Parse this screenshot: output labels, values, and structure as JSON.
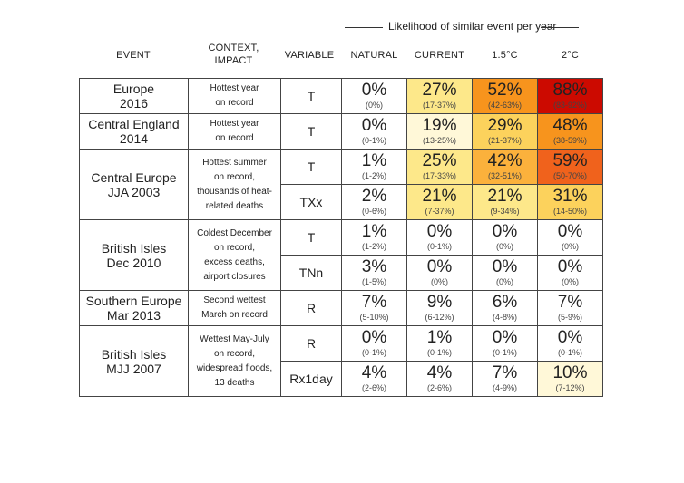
{
  "likelihood_label": "Likelihood of similar event per year",
  "headers": {
    "event": "EVENT",
    "context": "CONTEXT,\nIMPACT",
    "variable": "VARIABLE",
    "natural": "NATURAL",
    "current": "CURRENT",
    "c15": "1.5°C",
    "c2": "2°C"
  },
  "colors": {
    "white": "#ffffff",
    "pale_yellow": "#fff8d8",
    "light_yellow": "#fde88a",
    "yellow": "#fcd25c",
    "light_orange": "#fbb13c",
    "orange": "#f7941d",
    "dark_orange": "#f0621c",
    "red": "#cc0a00"
  },
  "events": [
    {
      "name": "Europe\n2016",
      "context": "Hottest year\non record",
      "rows": [
        {
          "variable": "T",
          "cells": [
            {
              "pct": "0%",
              "range": "(0%)",
              "color": "#ffffff"
            },
            {
              "pct": "27%",
              "range": "(17-37%)",
              "color": "#fde88a"
            },
            {
              "pct": "52%",
              "range": "(42-63%)",
              "color": "#f7941d"
            },
            {
              "pct": "88%",
              "range": "(83-92%)",
              "color": "#cc0a00"
            }
          ]
        }
      ]
    },
    {
      "name": "Central England\n2014",
      "context": "Hottest year\non record",
      "rows": [
        {
          "variable": "T",
          "cells": [
            {
              "pct": "0%",
              "range": "(0-1%)",
              "color": "#ffffff"
            },
            {
              "pct": "19%",
              "range": "(13-25%)",
              "color": "#fff8d8"
            },
            {
              "pct": "29%",
              "range": "(21-37%)",
              "color": "#fcd25c"
            },
            {
              "pct": "48%",
              "range": "(38-59%)",
              "color": "#f7941d"
            }
          ]
        }
      ]
    },
    {
      "name": "Central Europe\nJJA 2003",
      "context": "Hottest summer\non record,\nthousands of heat-\nrelated deaths",
      "rows": [
        {
          "variable": "T",
          "cells": [
            {
              "pct": "1%",
              "range": "(1-2%)",
              "color": "#ffffff"
            },
            {
              "pct": "25%",
              "range": "(17-33%)",
              "color": "#fde88a"
            },
            {
              "pct": "42%",
              "range": "(32-51%)",
              "color": "#fbb13c"
            },
            {
              "pct": "59%",
              "range": "(50-70%)",
              "color": "#f0621c"
            }
          ]
        },
        {
          "variable": "TXx",
          "cells": [
            {
              "pct": "2%",
              "range": "(0-6%)",
              "color": "#ffffff"
            },
            {
              "pct": "21%",
              "range": "(7-37%)",
              "color": "#fde88a"
            },
            {
              "pct": "21%",
              "range": "(9-34%)",
              "color": "#fde88a"
            },
            {
              "pct": "31%",
              "range": "(14-50%)",
              "color": "#fcd25c"
            }
          ]
        }
      ]
    },
    {
      "name": "British Isles\nDec 2010",
      "context": "Coldest December\non record,\nexcess deaths,\nairport closures",
      "rows": [
        {
          "variable": "T",
          "cells": [
            {
              "pct": "1%",
              "range": "(1-2%)",
              "color": "#ffffff"
            },
            {
              "pct": "0%",
              "range": "(0-1%)",
              "color": "#ffffff"
            },
            {
              "pct": "0%",
              "range": "(0%)",
              "color": "#ffffff"
            },
            {
              "pct": "0%",
              "range": "(0%)",
              "color": "#ffffff"
            }
          ]
        },
        {
          "variable": "TNn",
          "cells": [
            {
              "pct": "3%",
              "range": "(1-5%)",
              "color": "#ffffff"
            },
            {
              "pct": "0%",
              "range": "(0%)",
              "color": "#ffffff"
            },
            {
              "pct": "0%",
              "range": "(0%)",
              "color": "#ffffff"
            },
            {
              "pct": "0%",
              "range": "(0%)",
              "color": "#ffffff"
            }
          ]
        }
      ]
    },
    {
      "name": "Southern Europe\nMar 2013",
      "context": "Second wettest\nMarch on record",
      "rows": [
        {
          "variable": "R",
          "cells": [
            {
              "pct": "7%",
              "range": "(5-10%)",
              "color": "#ffffff"
            },
            {
              "pct": "9%",
              "range": "(6-12%)",
              "color": "#ffffff"
            },
            {
              "pct": "6%",
              "range": "(4-8%)",
              "color": "#ffffff"
            },
            {
              "pct": "7%",
              "range": "(5-9%)",
              "color": "#ffffff"
            }
          ]
        }
      ]
    },
    {
      "name": "British Isles\nMJJ 2007",
      "context": "Wettest May-July\non record,\nwidespread floods,\n13 deaths",
      "rows": [
        {
          "variable": "R",
          "cells": [
            {
              "pct": "0%",
              "range": "(0-1%)",
              "color": "#ffffff"
            },
            {
              "pct": "1%",
              "range": "(0-1%)",
              "color": "#ffffff"
            },
            {
              "pct": "0%",
              "range": "(0-1%)",
              "color": "#ffffff"
            },
            {
              "pct": "0%",
              "range": "(0-1%)",
              "color": "#ffffff"
            }
          ]
        },
        {
          "variable": "Rx1day",
          "cells": [
            {
              "pct": "4%",
              "range": "(2-6%)",
              "color": "#ffffff"
            },
            {
              "pct": "4%",
              "range": "(2-6%)",
              "color": "#ffffff"
            },
            {
              "pct": "7%",
              "range": "(4-9%)",
              "color": "#ffffff"
            },
            {
              "pct": "10%",
              "range": "(7-12%)",
              "color": "#fff8d8"
            }
          ]
        }
      ]
    }
  ]
}
